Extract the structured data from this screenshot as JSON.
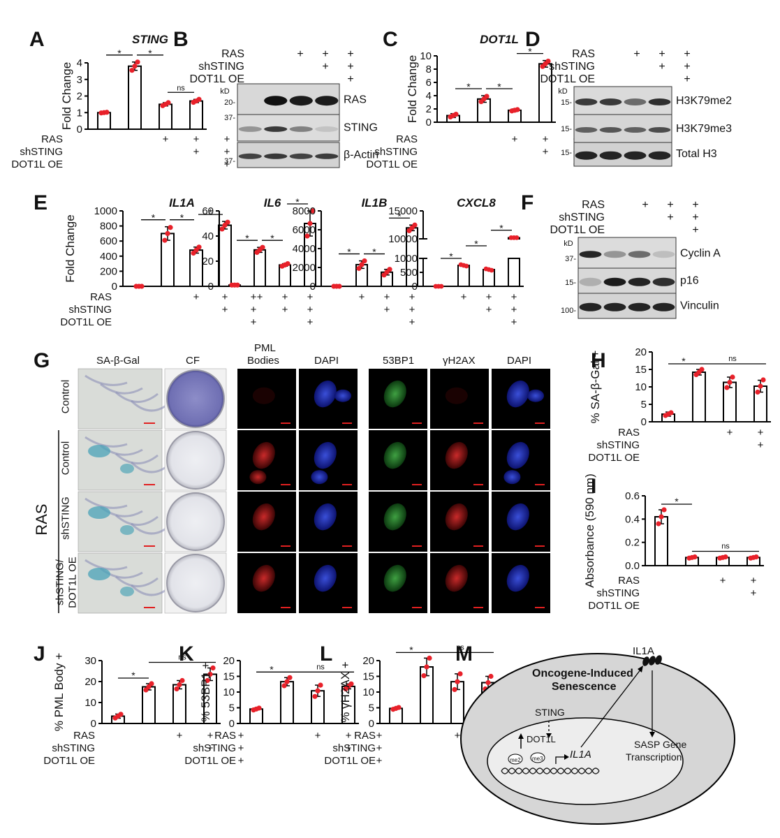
{
  "panel_letters": [
    "A",
    "B",
    "C",
    "D",
    "E",
    "F",
    "G",
    "H",
    "I",
    "J",
    "K",
    "L",
    "M"
  ],
  "conditions": {
    "rows": [
      "RAS",
      "shSTING",
      "DOT1L OE"
    ],
    "signs": [
      [
        "",
        "+",
        "+",
        "+"
      ],
      [
        "",
        "",
        "+",
        "+"
      ],
      [
        "",
        "",
        "",
        "+"
      ]
    ],
    "plus": "+"
  },
  "chart_data": [
    {
      "id": "A",
      "type": "bar",
      "title": "STING",
      "ylabel": "Fold Change",
      "ylim": [
        0,
        4
      ],
      "yticks": [
        0,
        1,
        2,
        3,
        4
      ],
      "values": [
        1.0,
        3.8,
        1.5,
        1.7
      ],
      "errors": [
        0.05,
        0.25,
        0.1,
        0.1
      ],
      "points": [
        [
          0.98,
          1.0,
          1.02
        ],
        [
          3.55,
          3.8,
          4.05
        ],
        [
          1.42,
          1.5,
          1.6
        ],
        [
          1.62,
          1.7,
          1.8
        ]
      ],
      "sig": [
        "*",
        "*",
        "ns"
      ]
    },
    {
      "id": "C",
      "type": "bar",
      "title": "DOT1L",
      "ylabel": "Fold Change",
      "ylim": [
        0,
        10
      ],
      "yticks": [
        0,
        2,
        4,
        6,
        8,
        10
      ],
      "values": [
        1.0,
        3.5,
        1.8,
        8.8
      ],
      "errors": [
        0.3,
        0.5,
        0.2,
        0.5
      ],
      "points": [
        [
          0.8,
          1.0,
          1.2
        ],
        [
          3.1,
          3.5,
          3.9
        ],
        [
          1.7,
          1.8,
          1.9
        ],
        [
          8.4,
          8.8,
          9.2
        ]
      ],
      "sig": [
        "*",
        "*",
        "*"
      ]
    },
    {
      "id": "E1",
      "type": "bar",
      "title": "IL1A",
      "ylabel": "Fold Change",
      "ylim": [
        0,
        1000
      ],
      "yticks": [
        0,
        200,
        400,
        600,
        800,
        1000
      ],
      "values": [
        0,
        700,
        480,
        810
      ],
      "errors": [
        0,
        90,
        40,
        50
      ],
      "points": [
        [
          0,
          0,
          0
        ],
        [
          610,
          700,
          780
        ],
        [
          440,
          480,
          520
        ],
        [
          760,
          810,
          850
        ]
      ],
      "sig": [
        "*",
        "*",
        "*"
      ]
    },
    {
      "id": "E2",
      "type": "bar",
      "title": "IL6",
      "ylim": [
        0,
        60
      ],
      "yticks": [
        0,
        20,
        40,
        60
      ],
      "values": [
        1,
        29,
        17,
        50
      ],
      "errors": [
        0,
        2,
        1,
        10
      ],
      "points": [
        [
          1,
          1,
          1
        ],
        [
          27,
          29,
          31
        ],
        [
          16,
          17,
          18
        ],
        [
          40,
          50,
          60
        ]
      ],
      "sig": [
        "*",
        "*",
        "*"
      ]
    },
    {
      "id": "E3",
      "type": "bar",
      "title": "IL1B",
      "ylim": [
        0,
        8000
      ],
      "yticks": [
        0,
        2000,
        4000,
        6000,
        8000
      ],
      "values": [
        0,
        2300,
        1500,
        6200
      ],
      "errors": [
        0,
        400,
        300,
        300
      ],
      "points": [
        [
          0,
          0,
          0
        ],
        [
          1900,
          2300,
          2700
        ],
        [
          1200,
          1500,
          1800
        ],
        [
          5900,
          6200,
          6500
        ]
      ],
      "sig": [
        "*",
        "*",
        "*"
      ]
    },
    {
      "id": "E4",
      "type": "bar-broken",
      "title": "CXCL8",
      "yticks_low": [
        0,
        500,
        1000
      ],
      "yticks_high": [
        10000,
        15000
      ],
      "values": [
        0,
        750,
        600,
        10200
      ],
      "errors": [
        0,
        40,
        30,
        200
      ],
      "sig": [
        "*",
        "*",
        "*"
      ]
    },
    {
      "id": "H",
      "type": "bar",
      "ylabel": "% SA-β-Gal +",
      "ylim": [
        0,
        20
      ],
      "yticks": [
        0,
        5,
        10,
        15,
        20
      ],
      "values": [
        2.2,
        14.2,
        11.3,
        10.2
      ],
      "errors": [
        0.6,
        0.8,
        1.5,
        1.7
      ],
      "points": [
        [
          1.8,
          2.2,
          2.6
        ],
        [
          13.5,
          14.2,
          15
        ],
        [
          9.8,
          11.3,
          12.8
        ],
        [
          8.5,
          10.2,
          12
        ]
      ],
      "sig": [
        "*",
        "ns"
      ]
    },
    {
      "id": "I",
      "type": "bar",
      "ylabel": "Absorbance (590 nm)",
      "ylim": [
        0,
        0.6
      ],
      "yticks": [
        0.0,
        0.2,
        0.4,
        0.6
      ],
      "values": [
        0.42,
        0.07,
        0.07,
        0.07
      ],
      "errors": [
        0.06,
        0.005,
        0.005,
        0.005
      ],
      "points": [
        [
          0.36,
          0.42,
          0.48
        ],
        [
          0.065,
          0.07,
          0.075
        ],
        [
          0.065,
          0.07,
          0.075
        ],
        [
          0.065,
          0.07,
          0.075
        ]
      ],
      "sig": [
        "*",
        "ns"
      ]
    },
    {
      "id": "J",
      "type": "bar",
      "ylabel": "% PML Body +",
      "ylim": [
        0,
        30
      ],
      "yticks": [
        0,
        10,
        20,
        30
      ],
      "values": [
        3.5,
        17.5,
        18.5,
        23.5
      ],
      "errors": [
        1,
        1.5,
        2,
        3
      ],
      "points": [
        [
          2.6,
          3.5,
          4.4
        ],
        [
          16,
          17.5,
          19
        ],
        [
          16.5,
          18.5,
          20.5
        ],
        [
          20.5,
          23.5,
          26.5
        ]
      ],
      "sig": [
        "*",
        "ns"
      ]
    },
    {
      "id": "K",
      "type": "bar",
      "ylabel": "% 53BP1 +",
      "ylim": [
        0,
        20
      ],
      "yticks": [
        0,
        5,
        10,
        15,
        20
      ],
      "values": [
        4.6,
        13.3,
        10.4,
        11.8
      ],
      "errors": [
        0.3,
        1.3,
        1.8,
        0.8
      ],
      "points": [
        [
          4.3,
          4.6,
          4.9
        ],
        [
          12,
          13.3,
          14.6
        ],
        [
          8.6,
          10.4,
          12.2
        ],
        [
          11,
          11.8,
          12.6
        ]
      ],
      "sig": [
        "*",
        "ns"
      ]
    },
    {
      "id": "L",
      "type": "bar",
      "ylabel": "% γH2AX +",
      "ylim": [
        0,
        20
      ],
      "yticks": [
        0,
        5,
        10,
        15,
        20
      ],
      "values": [
        4.8,
        18,
        13.3,
        13
      ],
      "errors": [
        0.3,
        2.8,
        2.5,
        2
      ],
      "points": [
        [
          4.5,
          4.8,
          5.1
        ],
        [
          15.2,
          18,
          20.8
        ],
        [
          10.8,
          13.3,
          15.8
        ],
        [
          11,
          13,
          15
        ]
      ],
      "sig": [
        "*",
        "ns"
      ]
    }
  ],
  "blots": {
    "B": {
      "headers": [
        "RAS",
        "shSTING",
        "DOT1L OE"
      ],
      "kd": "kD",
      "markers": [
        "20-",
        "37-",
        "37-"
      ],
      "bands": [
        "RAS",
        "STING",
        "β-Actin"
      ]
    },
    "D": {
      "headers": [
        "RAS",
        "shSTING",
        "DOT1L OE"
      ],
      "kd": "kD",
      "markers": [
        "15-",
        "15-",
        "15-"
      ],
      "bands": [
        "H3K79me2",
        "H3K79me3",
        "Total H3"
      ]
    },
    "F": {
      "headers": [
        "RAS",
        "shSTING",
        "DOT1L OE"
      ],
      "kd": "kD",
      "markers": [
        "37-",
        "15-",
        "100-"
      ],
      "bands": [
        "Cyclin A",
        "p16",
        "Vinculin"
      ]
    }
  },
  "panel_g": {
    "columns": [
      "SA-β-Gal",
      "CF",
      "PML\nBodies",
      "DAPI",
      "53BP1",
      "γH2AX",
      "DAPI"
    ],
    "col_pml_line1": "PML",
    "col_pml_line2": "Bodies",
    "row_labels": [
      "Control",
      "Control",
      "shSTING",
      "shSTING/\nDOT1L OE"
    ],
    "row_label_1": "Control",
    "row_label_2": "Control",
    "row_label_3": "shSTING",
    "row_label_4a": "shSTING/",
    "row_label_4b": "DOT1L OE",
    "group_label": "RAS"
  },
  "panel_m": {
    "il1a_top": "IL1A",
    "cell_title1": "Oncogene-Induced",
    "cell_title2": "Senescence",
    "sting": "STING",
    "dot1l": "DOT1L",
    "me2": "me2",
    "me3": "me3",
    "il1a_gene": "IL1A",
    "sasp1": "SASP Gene",
    "sasp2": "Transcription"
  },
  "colors": {
    "dot": "#e8212a",
    "bar": "#ffffff",
    "axis": "#000000",
    "cell_outer": "#d6d6d6",
    "nucleus": "#ededed"
  }
}
